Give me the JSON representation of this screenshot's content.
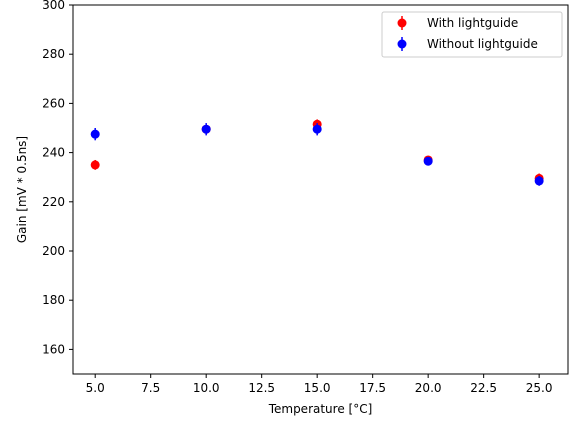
{
  "chart_data": {
    "type": "scatter",
    "title": "",
    "xlabel": "Temperature [°C]",
    "ylabel": "Gain [mV * 0.5ns]",
    "xlim": [
      4.0,
      26.3
    ],
    "ylim": [
      150,
      300
    ],
    "xticks": [
      5.0,
      7.5,
      10.0,
      12.5,
      15.0,
      17.5,
      20.0,
      22.5,
      25.0
    ],
    "xtick_labels": [
      "5.0",
      "7.5",
      "10.0",
      "12.5",
      "15.0",
      "17.5",
      "20.0",
      "22.5",
      "25.0"
    ],
    "yticks": [
      160,
      180,
      200,
      220,
      240,
      260,
      280,
      300
    ],
    "ytick_labels": [
      "160",
      "180",
      "200",
      "220",
      "240",
      "260",
      "280",
      "300"
    ],
    "grid": false,
    "legend_position": "top-right",
    "series": [
      {
        "name": "With lightguide",
        "color": "#ff0000",
        "x": [
          5.0,
          10.0,
          15.0,
          20.0,
          25.0
        ],
        "y": [
          235.0,
          249.5,
          251.5,
          237.0,
          229.5
        ],
        "yerr": [
          2.0,
          1.5,
          2.0,
          1.5,
          2.0
        ]
      },
      {
        "name": "Without lightguide",
        "color": "#0000ff",
        "x": [
          5.0,
          10.0,
          15.0,
          20.0,
          25.0
        ],
        "y": [
          247.5,
          249.5,
          249.5,
          236.5,
          228.5
        ],
        "yerr": [
          2.5,
          2.5,
          2.5,
          1.5,
          2.0
        ]
      }
    ]
  }
}
